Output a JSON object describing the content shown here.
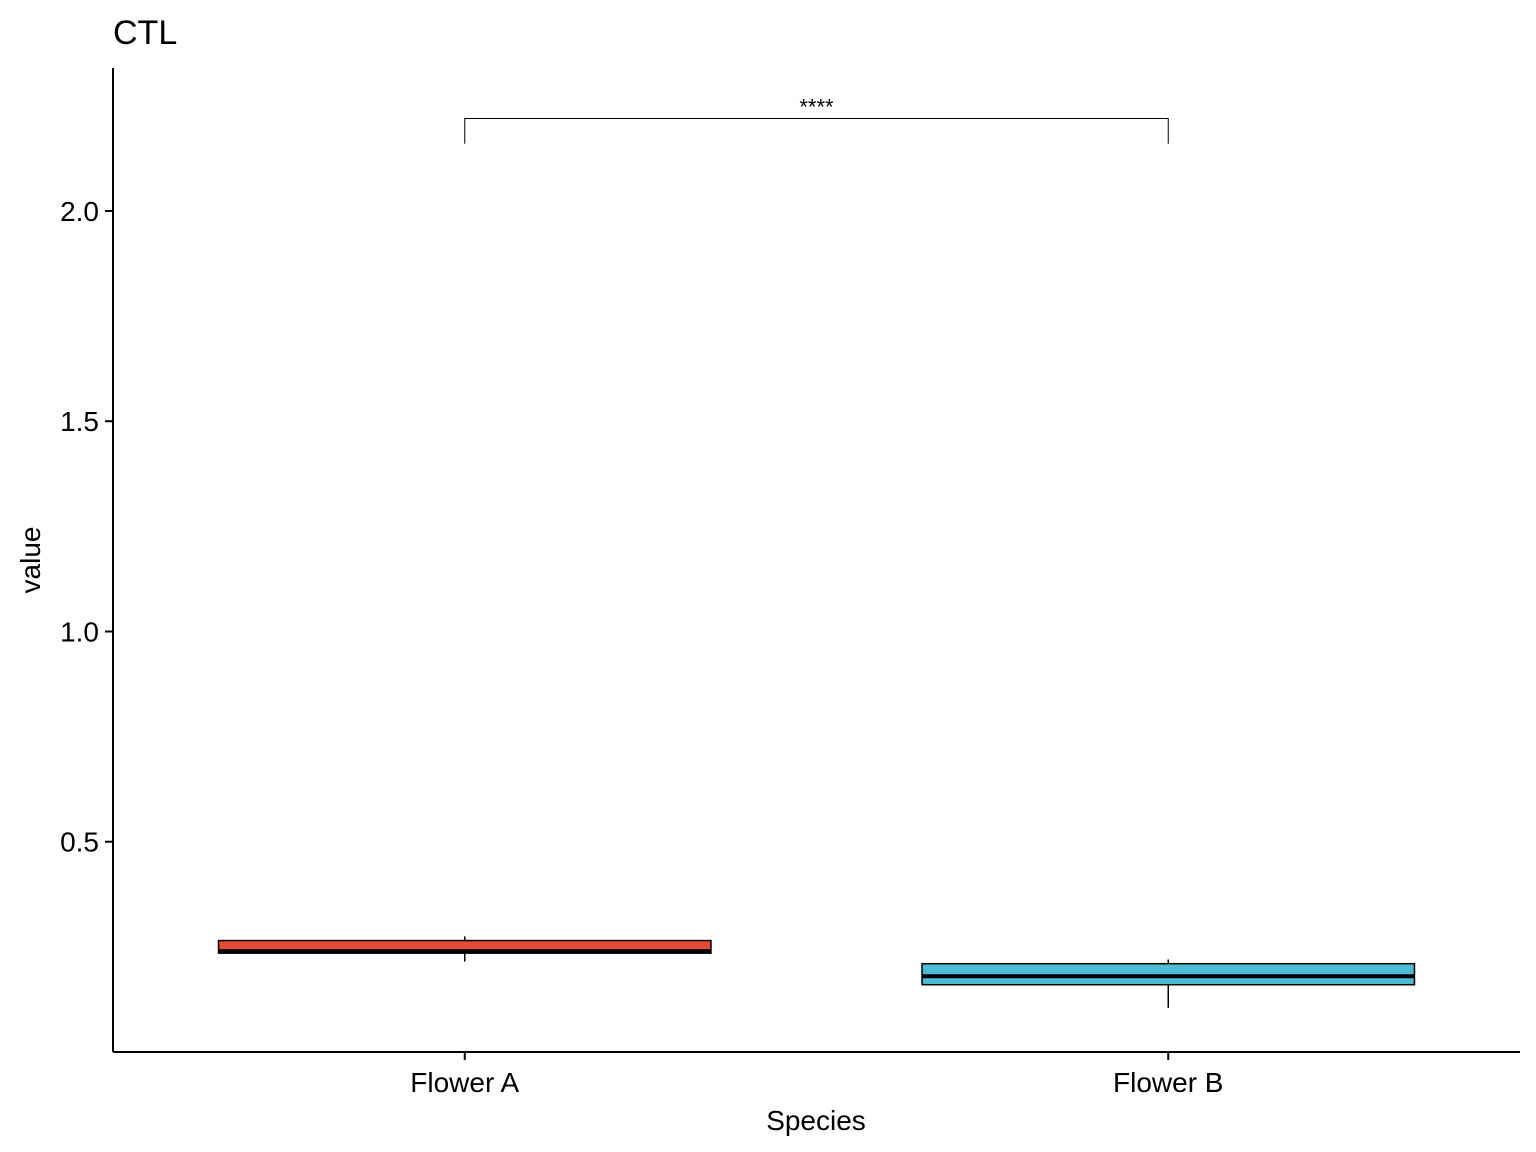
{
  "chart_data": {
    "type": "boxplot",
    "title": "CTL",
    "xlabel": "Species",
    "ylabel": "value",
    "categories": [
      "Flower A",
      "Flower B"
    ],
    "ylim": [
      0.0,
      2.34
    ],
    "yticks": [
      0.5,
      1.0,
      1.5,
      2.0
    ],
    "ytick_labels": [
      "0.5",
      "1.0",
      "1.5",
      "2.0"
    ],
    "grid": false,
    "legend": "none",
    "boxes": [
      {
        "name": "Flower A",
        "color": "#E64B35",
        "whisker_low": 0.215,
        "q1": 0.235,
        "median": 0.24,
        "q3": 0.265,
        "whisker_high": 0.275
      },
      {
        "name": "Flower B",
        "color": "#4DBBD5",
        "whisker_low": 0.105,
        "q1": 0.16,
        "median": 0.18,
        "q3": 0.21,
        "whisker_high": 0.22
      }
    ],
    "annotations": [
      {
        "label": "****",
        "from": "Flower A",
        "to": "Flower B",
        "y": 2.22,
        "tip_bottom": 2.16
      }
    ]
  }
}
